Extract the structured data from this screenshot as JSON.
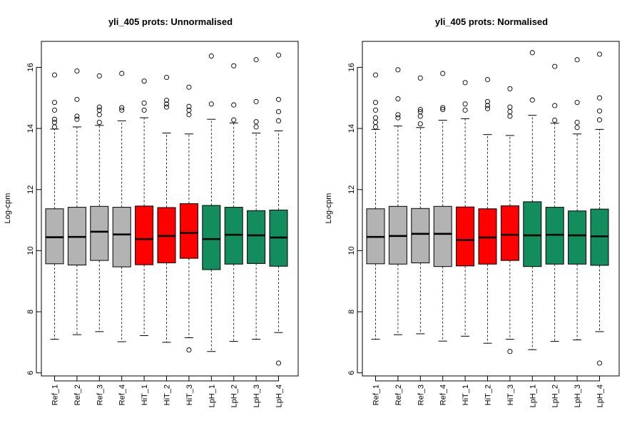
{
  "chart_data": [
    {
      "type": "boxplot",
      "title": "yli_405 prots: Unnormalised",
      "xlabel": "",
      "ylabel": "Log-cpm",
      "ylim": [
        5.9,
        16.85
      ],
      "yticks": [
        6,
        8,
        10,
        12,
        14,
        16
      ],
      "grid": false,
      "legend": "none",
      "categories": [
        "Ref_1",
        "Ref_2",
        "Ref_3",
        "Ref_4",
        "HiT_1",
        "HiT_2",
        "HiT_3",
        "LpH_1",
        "LpH_2",
        "LpH_3",
        "LpH_4"
      ],
      "colors": [
        "#b3b3b3",
        "#b3b3b3",
        "#b3b3b3",
        "#b3b3b3",
        "#ff0000",
        "#ff0000",
        "#ff0000",
        "#138d5e",
        "#138d5e",
        "#138d5e",
        "#138d5e"
      ],
      "boxes": [
        {
          "min": 7.1,
          "q1": 9.57,
          "median": 10.44,
          "q3": 11.37,
          "max": 13.98,
          "outliers": [
            14.05,
            14.2,
            14.3,
            14.6,
            14.85,
            15.75
          ]
        },
        {
          "min": 7.25,
          "q1": 9.53,
          "median": 10.45,
          "q3": 11.42,
          "max": 14.05,
          "outliers": [
            14.3,
            14.4,
            14.95,
            15.88
          ]
        },
        {
          "min": 7.35,
          "q1": 9.68,
          "median": 10.62,
          "q3": 11.45,
          "max": 14.1,
          "outliers": [
            14.2,
            14.45,
            14.6,
            14.7,
            15.72
          ]
        },
        {
          "min": 7.02,
          "q1": 9.47,
          "median": 10.53,
          "q3": 11.42,
          "max": 14.25,
          "outliers": [
            14.6,
            14.68,
            15.8
          ]
        },
        {
          "min": 7.22,
          "q1": 9.54,
          "median": 10.38,
          "q3": 11.46,
          "max": 14.35,
          "outliers": [
            14.6,
            14.83,
            15.55
          ]
        },
        {
          "min": 7.0,
          "q1": 9.6,
          "median": 10.48,
          "q3": 11.41,
          "max": 13.85,
          "outliers": [
            14.7,
            14.8,
            14.92,
            15.67
          ]
        },
        {
          "min": 7.15,
          "q1": 9.75,
          "median": 10.58,
          "q3": 11.54,
          "max": 13.82,
          "outliers": [
            6.75,
            14.45,
            14.6,
            14.72,
            15.35
          ]
        },
        {
          "min": 6.7,
          "q1": 9.38,
          "median": 10.38,
          "q3": 11.48,
          "max": 14.3,
          "outliers": [
            14.8,
            16.37
          ]
        },
        {
          "min": 7.03,
          "q1": 9.56,
          "median": 10.52,
          "q3": 11.42,
          "max": 14.18,
          "outliers": [
            14.28,
            14.77,
            16.05
          ]
        },
        {
          "min": 7.1,
          "q1": 9.58,
          "median": 10.5,
          "q3": 11.31,
          "max": 13.85,
          "outliers": [
            14.05,
            14.22,
            14.88,
            16.25
          ]
        },
        {
          "min": 7.32,
          "q1": 9.49,
          "median": 10.43,
          "q3": 11.33,
          "max": 13.92,
          "outliers": [
            6.32,
            14.25,
            14.55,
            14.95,
            16.4
          ]
        }
      ]
    },
    {
      "type": "boxplot",
      "title": "yli_405 prots: Normalised",
      "xlabel": "",
      "ylabel": "Log-cpm",
      "ylim": [
        5.9,
        16.85
      ],
      "yticks": [
        6,
        8,
        10,
        12,
        14,
        16
      ],
      "grid": false,
      "legend": "none",
      "categories": [
        "Ref_1",
        "Ref_2",
        "Ref_3",
        "Ref_4",
        "HiT_1",
        "HiT_2",
        "HiT_3",
        "LpH_1",
        "LpH_2",
        "LpH_3",
        "LpH_4"
      ],
      "colors": [
        "#b3b3b3",
        "#b3b3b3",
        "#b3b3b3",
        "#b3b3b3",
        "#ff0000",
        "#ff0000",
        "#ff0000",
        "#138d5e",
        "#138d5e",
        "#138d5e",
        "#138d5e"
      ],
      "boxes": [
        {
          "min": 7.1,
          "q1": 9.57,
          "median": 10.45,
          "q3": 11.37,
          "max": 13.97,
          "outliers": [
            14.05,
            14.2,
            14.35,
            14.6,
            14.85,
            15.75
          ]
        },
        {
          "min": 7.25,
          "q1": 9.56,
          "median": 10.48,
          "q3": 11.45,
          "max": 14.08,
          "outliers": [
            14.35,
            14.45,
            14.97,
            15.92
          ]
        },
        {
          "min": 7.28,
          "q1": 9.6,
          "median": 10.55,
          "q3": 11.38,
          "max": 14.03,
          "outliers": [
            14.15,
            14.4,
            14.55,
            14.62,
            15.65
          ]
        },
        {
          "min": 7.04,
          "q1": 9.48,
          "median": 10.55,
          "q3": 11.45,
          "max": 14.27,
          "outliers": [
            14.62,
            14.68,
            15.8
          ]
        },
        {
          "min": 7.2,
          "q1": 9.5,
          "median": 10.35,
          "q3": 11.43,
          "max": 14.32,
          "outliers": [
            14.6,
            14.8,
            15.5
          ]
        },
        {
          "min": 6.97,
          "q1": 9.56,
          "median": 10.43,
          "q3": 11.37,
          "max": 13.8,
          "outliers": [
            14.65,
            14.75,
            14.88,
            15.6
          ]
        },
        {
          "min": 7.1,
          "q1": 9.68,
          "median": 10.52,
          "q3": 11.47,
          "max": 13.77,
          "outliers": [
            6.7,
            14.4,
            14.55,
            14.7,
            15.3
          ]
        },
        {
          "min": 6.76,
          "q1": 9.48,
          "median": 10.5,
          "q3": 11.6,
          "max": 14.43,
          "outliers": [
            14.93,
            16.48
          ]
        },
        {
          "min": 7.03,
          "q1": 9.56,
          "median": 10.52,
          "q3": 11.42,
          "max": 14.17,
          "outliers": [
            14.27,
            14.75,
            16.03
          ]
        },
        {
          "min": 7.08,
          "q1": 9.56,
          "median": 10.5,
          "q3": 11.3,
          "max": 13.82,
          "outliers": [
            14.03,
            14.2,
            14.85,
            16.25
          ]
        },
        {
          "min": 7.35,
          "q1": 9.52,
          "median": 10.47,
          "q3": 11.36,
          "max": 13.97,
          "outliers": [
            6.32,
            14.28,
            14.57,
            15.0,
            16.43
          ]
        }
      ]
    }
  ]
}
